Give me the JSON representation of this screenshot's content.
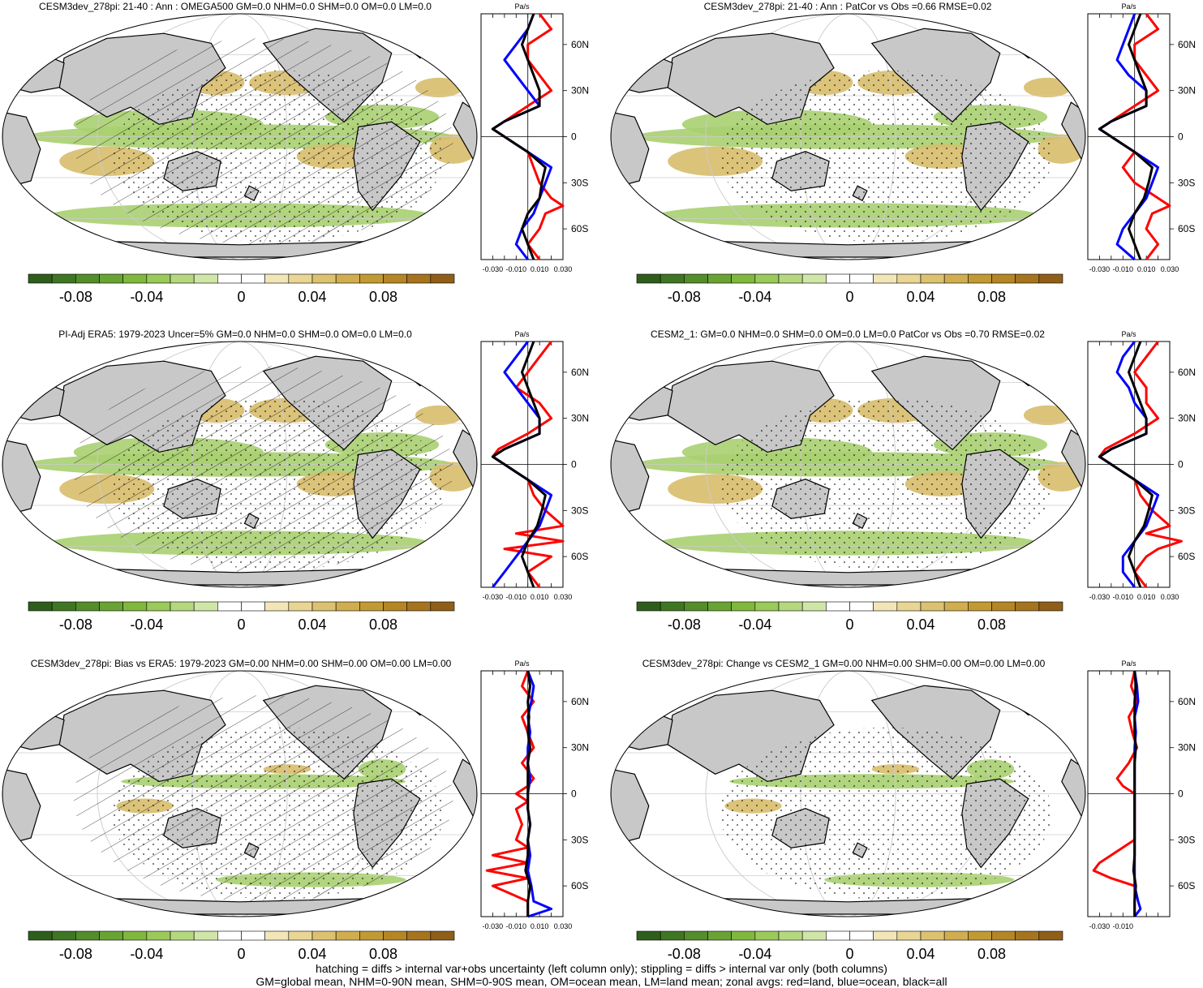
{
  "chart_data": [
    {
      "type": "heatmap",
      "title": "CESM3dev_278pi: 21-40 : Ann : OMEGA500 GM=0.0 NHM=0.0 SHM=0.0 OM=0.0 LM=0.0",
      "zonal_units": "Pa/s",
      "zonal_ticks": [
        "-0.030",
        "-0.010",
        "0.010",
        "0.030"
      ],
      "lat_ticks": [
        "60N",
        "30N",
        "0",
        "30S",
        "60S"
      ],
      "colorbar_ticks": [
        "-0.08",
        "-0.04",
        "0",
        "0.04",
        "0.08"
      ],
      "hatching": true,
      "zonal_series": [
        {
          "color": "#ff0000",
          "lat": [
            80,
            70,
            60,
            50,
            40,
            30,
            20,
            10,
            5,
            0,
            -5,
            -10,
            -20,
            -30,
            -40,
            -45,
            -50,
            -60,
            -70,
            -80
          ],
          "values": [
            0.01,
            0.02,
            0.0,
            0.0,
            0.01,
            0.02,
            0.0,
            -0.02,
            -0.03,
            -0.02,
            -0.01,
            0.0,
            0.005,
            0.01,
            0.02,
            0.03,
            0.015,
            0.01,
            0.0,
            0.01
          ]
        },
        {
          "color": "#0000ff",
          "lat": [
            80,
            70,
            60,
            50,
            40,
            30,
            20,
            10,
            5,
            0,
            -5,
            -10,
            -20,
            -30,
            -40,
            -50,
            -60,
            -70,
            -80
          ],
          "values": [
            0.005,
            0.0,
            -0.01,
            -0.02,
            -0.01,
            0.0,
            0.01,
            -0.02,
            -0.03,
            -0.02,
            -0.01,
            0.0,
            0.02,
            0.015,
            0.01,
            0.005,
            -0.005,
            -0.01,
            0.0
          ]
        },
        {
          "color": "#000000",
          "lat": [
            80,
            70,
            60,
            50,
            40,
            30,
            20,
            10,
            5,
            0,
            -5,
            -10,
            -20,
            -30,
            -40,
            -50,
            -60,
            -70,
            -80
          ],
          "values": [
            0.005,
            0.0,
            -0.005,
            0.0,
            0.005,
            0.01,
            0.01,
            -0.02,
            -0.03,
            -0.02,
            -0.01,
            0.0,
            0.015,
            0.012,
            0.01,
            0.0,
            -0.005,
            0.0,
            0.005
          ]
        }
      ]
    },
    {
      "type": "heatmap",
      "title": "CESM3dev_278pi: 21-40 : Ann : PatCor vs Obs =0.66 RMSE=0.02",
      "zonal_units": "Pa/s",
      "zonal_ticks": [
        "-0.030",
        "-0.010",
        "0.010",
        "0.030"
      ],
      "lat_ticks": [
        "60N",
        "30N",
        "0",
        "30S",
        "60S"
      ],
      "colorbar_ticks": [
        "-0.08",
        "-0.04",
        "0",
        "0.04",
        "0.08"
      ],
      "hatching": false,
      "zonal_series": [
        {
          "color": "#ff0000",
          "lat": [
            80,
            70,
            60,
            50,
            40,
            30,
            20,
            10,
            5,
            0,
            -5,
            -10,
            -20,
            -30,
            -40,
            -45,
            -50,
            -60,
            -70,
            -80
          ],
          "values": [
            0.01,
            0.02,
            0.0,
            0.0,
            0.01,
            0.02,
            0.0,
            -0.02,
            -0.03,
            -0.02,
            -0.01,
            0.0,
            -0.01,
            0.0,
            0.02,
            0.03,
            0.015,
            0.01,
            0.02,
            0.01
          ]
        },
        {
          "color": "#0000ff",
          "lat": [
            80,
            70,
            60,
            50,
            40,
            30,
            20,
            10,
            5,
            0,
            -5,
            -10,
            -20,
            -30,
            -40,
            -50,
            -60,
            -70,
            -80
          ],
          "values": [
            0.0,
            -0.005,
            -0.01,
            -0.015,
            -0.005,
            0.01,
            0.01,
            -0.02,
            -0.03,
            -0.02,
            -0.01,
            0.0,
            0.02,
            0.015,
            0.01,
            0.0,
            -0.01,
            -0.015,
            0.0
          ]
        },
        {
          "color": "#000000",
          "lat": [
            80,
            70,
            60,
            50,
            40,
            30,
            20,
            10,
            5,
            0,
            -5,
            -10,
            -20,
            -30,
            -40,
            -50,
            -60,
            -70,
            -80
          ],
          "values": [
            0.005,
            0.0,
            -0.005,
            0.0,
            0.005,
            0.01,
            0.01,
            -0.02,
            -0.03,
            -0.02,
            -0.01,
            0.0,
            0.015,
            0.012,
            0.008,
            0.0,
            -0.005,
            0.0,
            0.005
          ]
        }
      ]
    },
    {
      "type": "heatmap",
      "title": "PI-Adj ERA5: 1979-2023 Uncer=5% GM=0.0 NHM=0.0 SHM=0.0 OM=0.0 LM=0.0",
      "zonal_units": "Pa/s",
      "zonal_ticks": [
        "-0.030",
        "-0.010",
        "0.010",
        "0.030"
      ],
      "lat_ticks": [
        "60N",
        "30N",
        "0",
        "30S",
        "60S"
      ],
      "colorbar_ticks": [
        "-0.08",
        "-0.04",
        "0",
        "0.04",
        "0.08"
      ],
      "hatching": true,
      "zonal_series": [
        {
          "color": "#ff0000",
          "lat": [
            80,
            70,
            60,
            50,
            40,
            30,
            20,
            10,
            5,
            0,
            -5,
            -10,
            -20,
            -30,
            -40,
            -45,
            -50,
            -55,
            -60,
            -70,
            -80
          ],
          "values": [
            0.02,
            0.01,
            0.0,
            -0.01,
            0.01,
            0.02,
            0.0,
            -0.025,
            -0.03,
            -0.02,
            -0.01,
            0.0,
            0.005,
            0.015,
            0.03,
            -0.01,
            0.03,
            -0.02,
            0.02,
            0.0,
            0.01
          ]
        },
        {
          "color": "#0000ff",
          "lat": [
            80,
            70,
            60,
            50,
            40,
            30,
            20,
            10,
            5,
            0,
            -5,
            -10,
            -20,
            -30,
            -40,
            -50,
            -60,
            -70,
            -80
          ],
          "values": [
            0.0,
            -0.01,
            -0.02,
            -0.01,
            0.0,
            0.01,
            0.01,
            -0.02,
            -0.03,
            -0.02,
            -0.01,
            0.0,
            0.02,
            0.015,
            0.01,
            0.0,
            -0.01,
            -0.02,
            -0.03
          ]
        },
        {
          "color": "#000000",
          "lat": [
            80,
            70,
            60,
            50,
            40,
            30,
            20,
            10,
            5,
            0,
            -5,
            -10,
            -20,
            -30,
            -40,
            -50,
            -60,
            -70,
            -80
          ],
          "values": [
            0.005,
            0.0,
            -0.005,
            0.0,
            0.005,
            0.01,
            0.01,
            -0.02,
            -0.03,
            -0.02,
            -0.01,
            0.0,
            0.015,
            0.012,
            0.008,
            0.0,
            -0.005,
            0.0,
            0.005
          ]
        }
      ]
    },
    {
      "type": "heatmap",
      "title": "CESM2_1: GM=0.0 NHM=0.0 SHM=0.0 OM=0.0 LM=0.0 PatCor vs Obs =0.70 RMSE=0.02",
      "zonal_units": "Pa/s",
      "zonal_ticks": [
        "-0.030",
        "-0.010",
        "0.010",
        "0.030"
      ],
      "lat_ticks": [
        "60N",
        "30N",
        "0",
        "30S",
        "60S"
      ],
      "colorbar_ticks": [
        "-0.08",
        "-0.04",
        "0",
        "0.04",
        "0.08"
      ],
      "hatching": false,
      "zonal_series": [
        {
          "color": "#ff0000",
          "lat": [
            80,
            70,
            60,
            50,
            40,
            30,
            20,
            10,
            5,
            0,
            -5,
            -10,
            -20,
            -30,
            -40,
            -45,
            -50,
            -55,
            -60,
            -70,
            -80
          ],
          "values": [
            0.02,
            0.01,
            0.0,
            0.01,
            0.01,
            0.02,
            0.0,
            -0.025,
            -0.03,
            -0.02,
            -0.01,
            0.0,
            0.005,
            0.015,
            0.03,
            0.01,
            0.04,
            0.02,
            0.01,
            0.0,
            0.01
          ]
        },
        {
          "color": "#0000ff",
          "lat": [
            80,
            70,
            60,
            50,
            40,
            30,
            20,
            10,
            5,
            0,
            -5,
            -10,
            -20,
            -30,
            -40,
            -50,
            -60,
            -70,
            -80
          ],
          "values": [
            0.0,
            -0.01,
            -0.015,
            -0.005,
            0.0,
            0.01,
            0.01,
            -0.02,
            -0.03,
            -0.02,
            -0.01,
            0.0,
            0.02,
            0.015,
            0.01,
            0.0,
            -0.01,
            -0.01,
            0.0
          ]
        },
        {
          "color": "#000000",
          "lat": [
            80,
            70,
            60,
            50,
            40,
            30,
            20,
            10,
            5,
            0,
            -5,
            -10,
            -20,
            -30,
            -40,
            -50,
            -60,
            -70,
            -80
          ],
          "values": [
            0.005,
            0.0,
            -0.005,
            0.0,
            0.005,
            0.01,
            0.01,
            -0.02,
            -0.03,
            -0.02,
            -0.01,
            0.0,
            0.015,
            0.012,
            0.008,
            0.0,
            -0.005,
            0.0,
            0.005
          ]
        }
      ]
    },
    {
      "type": "heatmap",
      "title": "CESM3dev_278pi: Bias vs ERA5: 1979-2023 GM=0.00 NHM=0.00 SHM=0.00 OM=0.00 LM=0.00",
      "zonal_units": "Pa/s",
      "zonal_ticks": [
        "-0.030",
        "-0.010",
        "0.010",
        "0.030"
      ],
      "lat_ticks": [
        "60N",
        "30N",
        "0",
        "30S",
        "60S"
      ],
      "colorbar_ticks": [
        "-0.08",
        "-0.04",
        "0",
        "0.04",
        "0.08"
      ],
      "hatching": true,
      "zonal_series": [
        {
          "color": "#ff0000",
          "lat": [
            80,
            70,
            60,
            50,
            40,
            30,
            20,
            10,
            5,
            0,
            -5,
            -10,
            -20,
            -30,
            -35,
            -40,
            -45,
            -50,
            -55,
            -60,
            -70,
            -80
          ],
          "values": [
            0.0,
            -0.005,
            0.005,
            -0.005,
            0.0,
            0.005,
            -0.005,
            0.005,
            0.0,
            -0.01,
            0.0,
            -0.01,
            -0.005,
            -0.01,
            0.0,
            -0.03,
            0.0,
            -0.035,
            0.0,
            -0.03,
            0.0,
            0.0
          ]
        },
        {
          "color": "#0000ff",
          "lat": [
            80,
            70,
            60,
            50,
            40,
            30,
            20,
            10,
            0,
            -10,
            -20,
            -30,
            -40,
            -50,
            -60,
            -70,
            -75,
            -80
          ],
          "values": [
            0.0,
            0.005,
            0.003,
            0.0,
            0.002,
            0.0,
            0.0,
            0.002,
            0.0,
            0.0,
            0.002,
            0.0,
            0.002,
            0.0,
            0.003,
            0.005,
            0.02,
            0.0
          ]
        },
        {
          "color": "#000000",
          "lat": [
            80,
            70,
            60,
            50,
            40,
            30,
            20,
            10,
            0,
            -10,
            -20,
            -30,
            -40,
            -50,
            -60,
            -70,
            -80
          ],
          "values": [
            0.0,
            0.002,
            0.0,
            0.001,
            0.0,
            0.002,
            0.0,
            0.0,
            0.0,
            0.0,
            0.002,
            0.0,
            0.0,
            -0.002,
            0.002,
            0.0,
            0.0
          ]
        }
      ]
    },
    {
      "type": "heatmap",
      "title": "CESM3dev_278pi: Change vs CESM2_1 GM=0.00 NHM=0.00 SHM=0.00 OM=0.00 LM=0.00",
      "zonal_units": "Pa/s",
      "zonal_ticks": [
        "-0.030",
        "-0.010"
      ],
      "lat_ticks": [
        "60N",
        "30N",
        "0",
        "30S",
        "60S"
      ],
      "colorbar_ticks": [
        "-0.08",
        "-0.04",
        "0",
        "0.04",
        "0.08"
      ],
      "hatching": false,
      "zonal_series": [
        {
          "color": "#ff0000",
          "lat": [
            80,
            70,
            60,
            50,
            40,
            30,
            20,
            10,
            5,
            0,
            -5,
            -10,
            -20,
            -30,
            -40,
            -45,
            -50,
            -55,
            -60,
            -70,
            -80
          ],
          "values": [
            0.0,
            -0.003,
            0.002,
            -0.005,
            -0.002,
            0.002,
            -0.005,
            -0.015,
            -0.01,
            0.0,
            0.0,
            0.0,
            0.0,
            0.0,
            -0.02,
            -0.03,
            -0.035,
            -0.02,
            0.0,
            0.0,
            0.0
          ]
        },
        {
          "color": "#0000ff",
          "lat": [
            80,
            70,
            60,
            50,
            40,
            30,
            20,
            10,
            0,
            -10,
            -20,
            -30,
            -40,
            -50,
            -60,
            -70,
            -75,
            -80
          ],
          "values": [
            0.0,
            0.002,
            0.003,
            0.0,
            0.001,
            0.0,
            0.0,
            0.0,
            0.0,
            0.0,
            0.0,
            0.0,
            0.0,
            0.0,
            0.0,
            0.003,
            0.005,
            0.0
          ]
        },
        {
          "color": "#000000",
          "lat": [
            80,
            70,
            60,
            50,
            40,
            30,
            20,
            10,
            0,
            -10,
            -20,
            -30,
            -40,
            -50,
            -60,
            -70,
            -80
          ],
          "values": [
            0.0,
            0.001,
            0.0,
            0.0,
            0.0,
            0.001,
            0.0,
            0.0,
            0.0,
            0.0,
            0.0,
            0.0,
            0.0,
            -0.001,
            0.001,
            0.0,
            0.0
          ]
        }
      ]
    }
  ],
  "colorbar_colors": [
    "#2f5e1c",
    "#3f7623",
    "#548d2c",
    "#69a334",
    "#80b83e",
    "#9bc95a",
    "#b5d87f",
    "#cfe6a8",
    "#ffffff",
    "#ffffff",
    "#f2e6b8",
    "#e9d694",
    "#dcc270",
    "#d0ae4f",
    "#c29a34",
    "#b58626",
    "#a6741f",
    "#8f5f1a"
  ],
  "map_colors": {
    "land": "#c8c8c8",
    "green": "#a8cf70",
    "brown": "#d8bd6b",
    "grid": "#cccccc"
  },
  "footnotes": [
    "hatching = diffs > internal var+obs uncertainty (left column only); stippling = diffs > internal var only (both columns)",
    "GM=global mean, NHM=0-90N mean, SHM=0-90S mean, OM=ocean mean, LM=land mean; zonal avgs: red=land, blue=ocean, black=all"
  ]
}
